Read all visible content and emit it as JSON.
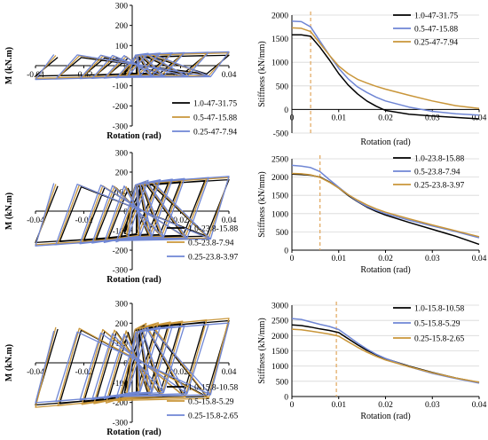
{
  "colors": {
    "black": "#000000",
    "blue": "#6f86d4",
    "gold": "#c9963a",
    "dashed_marker": "#e0a65a",
    "axis": "#000000",
    "grid": "#d8d8d8"
  },
  "chart_data": [
    {
      "id": "hyst-1",
      "type": "line",
      "variant": "hysteresis",
      "xlabel": "Rotation (rad)",
      "ylabel": "M (kN.m)",
      "xlim": [
        -0.04,
        0.04
      ],
      "ylim": [
        -300,
        300
      ],
      "xticks": [
        -0.04,
        -0.02,
        0,
        0.02,
        0.04
      ],
      "xtick_labels": [
        "-0.04",
        "-0.02",
        "0",
        "0.02",
        "0.04"
      ],
      "yticks": [
        -300,
        -200,
        -100,
        0,
        100,
        200,
        300
      ],
      "ytick_labels": [
        "-300",
        "-200",
        "-100",
        "0",
        "100",
        "200",
        "300"
      ],
      "legend_position": "bottom-right",
      "series": [
        {
          "name": "1.0-47-31.75",
          "color": "#000000",
          "peak_moment": 45,
          "cycles": [
            0.005,
            0.01,
            0.015,
            0.02,
            0.03,
            0.04
          ]
        },
        {
          "name": "0.5-47-15.88",
          "color": "#c9963a",
          "peak_moment": 55,
          "cycles": [
            0.005,
            0.01,
            0.015,
            0.02,
            0.03,
            0.04
          ]
        },
        {
          "name": "0.25-47-7.94",
          "color": "#6f86d4",
          "peak_moment": 60,
          "cycles": [
            0.005,
            0.01,
            0.015,
            0.02,
            0.03,
            0.04
          ]
        }
      ]
    },
    {
      "id": "stiff-1",
      "type": "line",
      "variant": "stiffness",
      "xlabel": "Rotation (rad)",
      "ylabel": "Stiffness (kN/mm)",
      "xlim": [
        0,
        0.04
      ],
      "ylim": [
        -500,
        2000
      ],
      "xticks": [
        0,
        0.01,
        0.02,
        0.03,
        0.04
      ],
      "xtick_labels": [
        "0",
        "0.01",
        "0.02",
        "0.03",
        "0.04"
      ],
      "yticks": [
        -500,
        0,
        500,
        1000,
        1500,
        2000
      ],
      "ytick_labels": [
        "-500",
        "0",
        "500",
        "1000",
        "1500",
        "2000"
      ],
      "x_axis_at_zero": true,
      "marker_x": 0.004,
      "legend_position": "top-right",
      "series": [
        {
          "name": "1.0-47-31.75",
          "color": "#000000",
          "x": [
            0,
            0.002,
            0.004,
            0.006,
            0.008,
            0.01,
            0.012,
            0.014,
            0.016,
            0.018,
            0.02,
            0.025,
            0.03,
            0.035,
            0.04
          ],
          "y": [
            1580,
            1580,
            1550,
            1320,
            1050,
            760,
            520,
            330,
            180,
            70,
            -20,
            -100,
            -140,
            -170,
            -200
          ]
        },
        {
          "name": "0.5-47-15.88",
          "color": "#6f86d4",
          "x": [
            0,
            0.002,
            0.004,
            0.006,
            0.008,
            0.01,
            0.012,
            0.014,
            0.016,
            0.018,
            0.02,
            0.025,
            0.03,
            0.035,
            0.04
          ],
          "y": [
            1870,
            1860,
            1750,
            1450,
            1150,
            870,
            650,
            480,
            360,
            260,
            180,
            50,
            -40,
            -90,
            -120
          ]
        },
        {
          "name": "0.25-47-7.94",
          "color": "#c9963a",
          "x": [
            0,
            0.002,
            0.004,
            0.006,
            0.008,
            0.01,
            0.012,
            0.014,
            0.016,
            0.018,
            0.02,
            0.025,
            0.03,
            0.035,
            0.04
          ],
          "y": [
            1730,
            1720,
            1650,
            1400,
            1150,
            920,
            760,
            640,
            560,
            490,
            430,
            300,
            180,
            80,
            20
          ]
        }
      ]
    },
    {
      "id": "hyst-2",
      "type": "line",
      "variant": "hysteresis",
      "xlabel": "Rotation (rad)",
      "ylabel": "M (kN.m)",
      "xlim": [
        -0.04,
        0.04
      ],
      "ylim": [
        -300,
        300
      ],
      "xticks": [
        -0.04,
        -0.02,
        0,
        0.02,
        0.04
      ],
      "xtick_labels": [
        "-0.04",
        "-0.02",
        "0",
        "0.02",
        "0.04"
      ],
      "yticks": [
        -300,
        -200,
        -100,
        0,
        100,
        200,
        300
      ],
      "ytick_labels": [
        "-300",
        "-200",
        "-100",
        "0",
        "100",
        "200",
        "300"
      ],
      "legend_position": "bottom-right",
      "series": [
        {
          "name": "1.0-23.8-15.88",
          "color": "#000000",
          "peak_moment": 140,
          "cycles": [
            0.005,
            0.01,
            0.015,
            0.02,
            0.03,
            0.04
          ]
        },
        {
          "name": "0.5-23.8-7.94",
          "color": "#c9963a",
          "peak_moment": 150,
          "cycles": [
            0.005,
            0.01,
            0.015,
            0.02,
            0.03,
            0.04
          ]
        },
        {
          "name": "0.25-23.8-3.97",
          "color": "#6f86d4",
          "peak_moment": 155,
          "cycles": [
            0.005,
            0.01,
            0.015,
            0.02,
            0.03,
            0.04
          ]
        }
      ]
    },
    {
      "id": "stiff-2",
      "type": "line",
      "variant": "stiffness",
      "xlabel": "Rotation (rad)",
      "ylabel": "Stiffness (kN/mm)",
      "xlim": [
        0,
        0.04
      ],
      "ylim": [
        0,
        2500
      ],
      "xticks": [
        0,
        0.01,
        0.02,
        0.03,
        0.04
      ],
      "xtick_labels": [
        "0",
        "0.01",
        "0.02",
        "0.03",
        "0.04"
      ],
      "yticks": [
        0,
        500,
        1000,
        1500,
        2000,
        2500
      ],
      "ytick_labels": [
        "0",
        "500",
        "1000",
        "1500",
        "2000",
        "2500"
      ],
      "marker_x": 0.006,
      "legend_position": "top-right",
      "series": [
        {
          "name": "1.0-23.8-15.88",
          "color": "#000000",
          "x": [
            0,
            0.002,
            0.004,
            0.006,
            0.008,
            0.01,
            0.012,
            0.014,
            0.016,
            0.018,
            0.02,
            0.025,
            0.03,
            0.035,
            0.04
          ],
          "y": [
            2080,
            2070,
            2050,
            2000,
            1870,
            1700,
            1500,
            1330,
            1180,
            1060,
            960,
            760,
            570,
            380,
            160
          ]
        },
        {
          "name": "0.5-23.8-7.94",
          "color": "#6f86d4",
          "x": [
            0,
            0.002,
            0.004,
            0.006,
            0.008,
            0.01,
            0.012,
            0.014,
            0.016,
            0.018,
            0.02,
            0.025,
            0.03,
            0.035,
            0.04
          ],
          "y": [
            2320,
            2300,
            2260,
            2150,
            1930,
            1720,
            1520,
            1340,
            1200,
            1090,
            1000,
            820,
            660,
            510,
            340
          ]
        },
        {
          "name": "0.25-23.8-3.97",
          "color": "#c9963a",
          "x": [
            0,
            0.002,
            0.004,
            0.006,
            0.008,
            0.01,
            0.012,
            0.014,
            0.016,
            0.018,
            0.02,
            0.025,
            0.03,
            0.035,
            0.04
          ],
          "y": [
            2100,
            2090,
            2060,
            1990,
            1860,
            1700,
            1520,
            1370,
            1240,
            1130,
            1040,
            860,
            690,
            530,
            370
          ]
        }
      ]
    },
    {
      "id": "hyst-3",
      "type": "line",
      "variant": "hysteresis",
      "xlabel": "Rotation (rad)",
      "ylabel": "M (kN.m)",
      "xlim": [
        -0.04,
        0.04
      ],
      "ylim": [
        -300,
        300
      ],
      "xticks": [
        -0.04,
        -0.02,
        0,
        0.02,
        0.04
      ],
      "xtick_labels": [
        "-0.04",
        "-0.02",
        "0",
        "0.02",
        "0.04"
      ],
      "yticks": [
        -300,
        -200,
        -100,
        0,
        100,
        200,
        300
      ],
      "ytick_labels": [
        "-300",
        "-200",
        "-100",
        "0",
        "100",
        "200",
        "300"
      ],
      "legend_position": "bottom-right",
      "series": [
        {
          "name": "1.0-15.8-10.58",
          "color": "#000000",
          "peak_moment": 185,
          "cycles": [
            0.005,
            0.01,
            0.015,
            0.02,
            0.03,
            0.04
          ]
        },
        {
          "name": "0.5-15.8-5.29",
          "color": "#c9963a",
          "peak_moment": 195,
          "cycles": [
            0.005,
            0.01,
            0.015,
            0.02,
            0.03,
            0.04
          ]
        },
        {
          "name": "0.25-15.8-2.65",
          "color": "#6f86d4",
          "peak_moment": 175,
          "cycles": [
            0.005,
            0.01,
            0.015,
            0.02,
            0.03,
            0.04
          ]
        }
      ]
    },
    {
      "id": "stiff-3",
      "type": "line",
      "variant": "stiffness",
      "xlabel": "Rotation (rad)",
      "ylabel": "Stiffness (kN/mm)",
      "xlim": [
        0,
        0.04
      ],
      "ylim": [
        0,
        3000
      ],
      "xticks": [
        0,
        0.01,
        0.02,
        0.03,
        0.04
      ],
      "xtick_labels": [
        "0",
        "0.01",
        "0.02",
        "0.03",
        "0.04"
      ],
      "yticks": [
        0,
        500,
        1000,
        1500,
        2000,
        2500,
        3000
      ],
      "ytick_labels": [
        "0",
        "500",
        "1000",
        "1500",
        "2000",
        "2500",
        "3000"
      ],
      "marker_x": 0.0095,
      "legend_position": "top-right",
      "series": [
        {
          "name": "1.0-15.8-10.58",
          "color": "#000000",
          "x": [
            0,
            0.002,
            0.004,
            0.006,
            0.008,
            0.01,
            0.012,
            0.014,
            0.016,
            0.018,
            0.02,
            0.025,
            0.03,
            0.035,
            0.04
          ],
          "y": [
            2350,
            2330,
            2280,
            2220,
            2170,
            2100,
            1900,
            1700,
            1520,
            1370,
            1240,
            1000,
            790,
            610,
            460
          ]
        },
        {
          "name": "0.5-15.8-5.29",
          "color": "#6f86d4",
          "x": [
            0,
            0.002,
            0.004,
            0.006,
            0.008,
            0.01,
            0.012,
            0.014,
            0.016,
            0.018,
            0.02,
            0.025,
            0.03,
            0.035,
            0.04
          ],
          "y": [
            2560,
            2530,
            2450,
            2370,
            2300,
            2200,
            1980,
            1760,
            1560,
            1390,
            1250,
            980,
            760,
            590,
            440
          ]
        },
        {
          "name": "0.25-15.8-2.65",
          "color": "#c9963a",
          "x": [
            0,
            0.002,
            0.004,
            0.006,
            0.008,
            0.01,
            0.012,
            0.014,
            0.016,
            0.018,
            0.02,
            0.025,
            0.03,
            0.035,
            0.04
          ],
          "y": [
            2210,
            2190,
            2150,
            2100,
            2050,
            1980,
            1800,
            1620,
            1460,
            1320,
            1200,
            980,
            780,
            610,
            470
          ]
        }
      ]
    }
  ]
}
